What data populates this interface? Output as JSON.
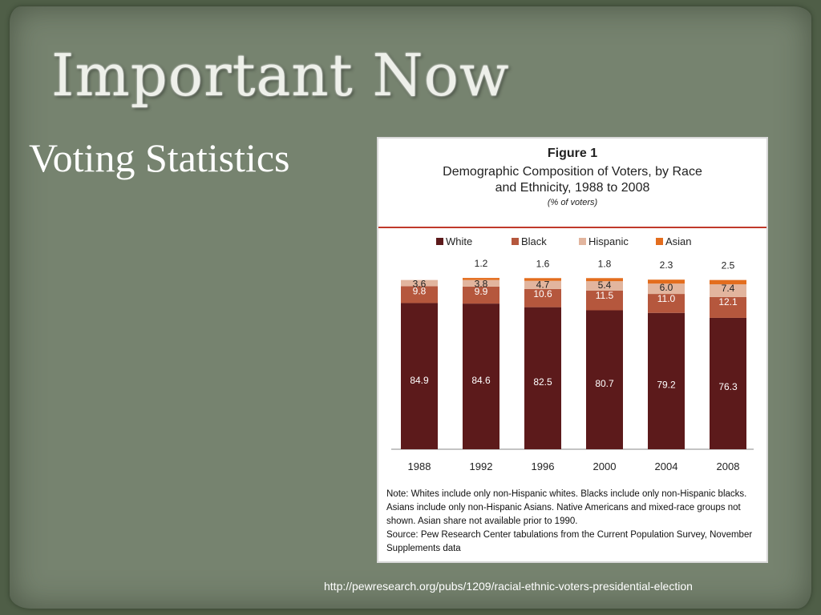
{
  "slide": {
    "title": "Important Now",
    "subtitle": "Voting Statistics",
    "url": "http://pewresearch.org/pubs/1209/racial-ethnic-voters-presidential-election"
  },
  "figure": {
    "label": "Figure 1",
    "title": "Demographic Composition of Voters, by Race and Ethnicity, 1988 to 2008",
    "units": "(% of voters)",
    "note": "Note: Whites include only non-Hispanic whites.  Blacks include only non-Hispanic blacks. Asians include only non-Hispanic Asians. Native Americans and mixed-race groups not shown. Asian share not available prior to 1990.",
    "source": "Source: Pew Research Center tabulations from the Current Population Survey, November Supplements data"
  },
  "chart_data": {
    "type": "bar",
    "stacked": true,
    "categories": [
      "1988",
      "1992",
      "1996",
      "2000",
      "2004",
      "2008"
    ],
    "series": [
      {
        "name": "White",
        "color": "#5c1a1b",
        "values": [
          84.9,
          84.6,
          82.5,
          80.7,
          79.2,
          76.3
        ]
      },
      {
        "name": "Black",
        "color": "#b5573d",
        "values": [
          9.8,
          9.9,
          10.6,
          11.5,
          11.0,
          12.1
        ]
      },
      {
        "name": "Hispanic",
        "color": "#e2b59e",
        "values": [
          3.6,
          3.8,
          4.7,
          5.4,
          6.0,
          7.4
        ]
      },
      {
        "name": "Asian",
        "color": "#e36d1e",
        "values": [
          null,
          1.2,
          1.6,
          1.8,
          2.3,
          2.5
        ]
      }
    ],
    "ylim": [
      0,
      100
    ],
    "legend": "top",
    "grid": false
  }
}
